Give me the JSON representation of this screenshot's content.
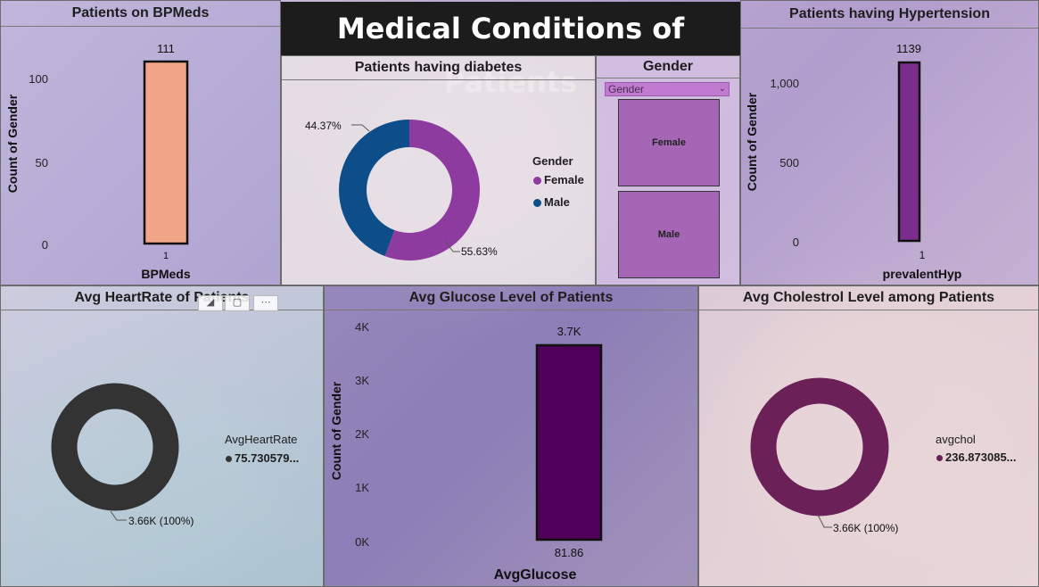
{
  "header": {
    "title": "Medical Conditions of Patients"
  },
  "colors": {
    "bpmeds_bar": "#f2a687",
    "hyp_bar": "#7a2d8c",
    "glucose_bar": "#4f0059",
    "female": "#8e3ba0",
    "male": "#0d4d8a",
    "heartrate_ring": "#333333",
    "chol_ring": "#6b2057"
  },
  "panels": {
    "bpmeds": {
      "title": "Patients on BPMeds",
      "ylabel": "Count of Gender",
      "xlabel": "BPMeds",
      "category": "1",
      "value_label": "111",
      "ticks": [
        "100",
        "50",
        "0"
      ]
    },
    "diabetes": {
      "title": "Patients having diabetes",
      "legend_title": "Gender",
      "female_label": "Female",
      "male_label": "Male",
      "female_pct": "55.63%",
      "male_pct": "44.37%"
    },
    "gender_slicer": {
      "title": "Gender",
      "dropdown_label": "Gender",
      "options": [
        "Female",
        "Male"
      ]
    },
    "hypertension": {
      "title": "Patients having Hypertension",
      "ylabel": "Count of Gender",
      "xlabel": "prevalentHyp",
      "category": "1",
      "value_label": "1139",
      "ticks": [
        "1,000",
        "500",
        "0"
      ]
    },
    "heartrate": {
      "title": "Avg HeartRate of Patients",
      "legend_title": "AvgHeartRate",
      "legend_value": "75.730579...",
      "ring_label": "3.66K (100%)"
    },
    "glucose": {
      "title": "Avg Glucose Level of Patients",
      "ylabel": "Count of Gender",
      "xlabel": "AvgGlucose",
      "category": "81.86",
      "value_label": "3.7K",
      "ticks": [
        "4K",
        "3K",
        "2K",
        "1K",
        "0K"
      ]
    },
    "cholesterol": {
      "title": "Avg Cholestrol Level among Patients",
      "legend_title": "avgchol",
      "legend_value": "236.873085...",
      "ring_label": "3.66K (100%)"
    }
  },
  "chart_data": [
    {
      "type": "bar",
      "title": "Patients on BPMeds",
      "xlabel": "BPMeds",
      "ylabel": "Count of Gender",
      "categories": [
        "1"
      ],
      "values": [
        111
      ],
      "ylim": [
        0,
        120
      ]
    },
    {
      "type": "pie",
      "title": "Patients having diabetes",
      "categories": [
        "Female",
        "Male"
      ],
      "values": [
        55.63,
        44.37
      ]
    },
    {
      "type": "bar",
      "title": "Patients having Hypertension",
      "xlabel": "prevalentHyp",
      "ylabel": "Count of Gender",
      "categories": [
        "1"
      ],
      "values": [
        1139
      ],
      "ylim": [
        0,
        1250
      ]
    },
    {
      "type": "pie",
      "title": "Avg HeartRate of Patients",
      "categories": [
        "75.730579..."
      ],
      "values": [
        100
      ]
    },
    {
      "type": "bar",
      "title": "Avg Glucose Level of Patients",
      "xlabel": "AvgGlucose",
      "ylabel": "Count of Gender",
      "categories": [
        "81.86"
      ],
      "values": [
        3660
      ],
      "ylim": [
        0,
        4000
      ]
    },
    {
      "type": "pie",
      "title": "Avg Cholestrol Level among Patients",
      "categories": [
        "236.873085..."
      ],
      "values": [
        100
      ]
    }
  ]
}
